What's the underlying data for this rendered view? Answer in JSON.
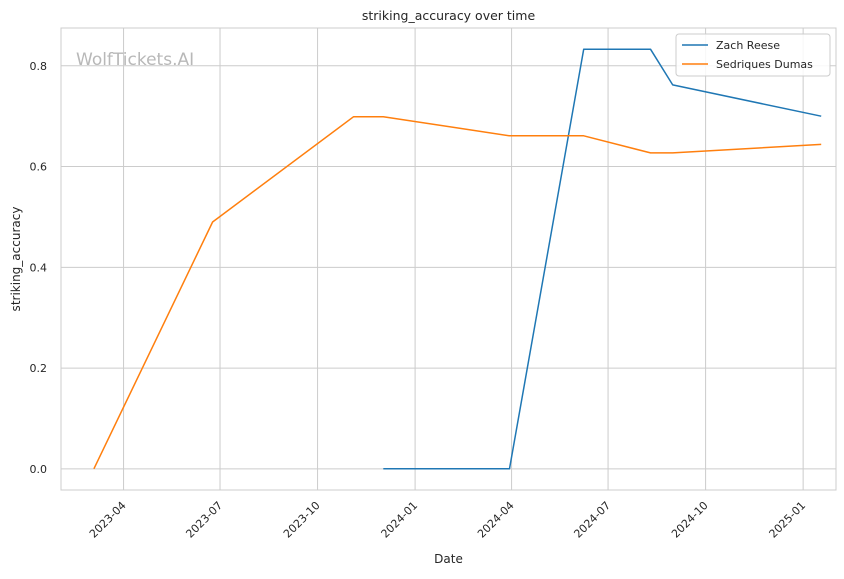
{
  "chart_data": {
    "type": "line",
    "title": "striking_accuracy over time",
    "xlabel": "Date",
    "ylabel": "striking_accuracy",
    "watermark": "WolfTickets.AI",
    "x_axis": {
      "range": [
        "2023-02-01",
        "2025-02-01"
      ],
      "ticks": [
        {
          "date": "2023-04-01",
          "label": "2023-04"
        },
        {
          "date": "2023-07-01",
          "label": "2023-07"
        },
        {
          "date": "2023-10-01",
          "label": "2023-10"
        },
        {
          "date": "2024-01-01",
          "label": "2024-01"
        },
        {
          "date": "2024-04-01",
          "label": "2024-04"
        },
        {
          "date": "2024-07-01",
          "label": "2024-07"
        },
        {
          "date": "2024-10-01",
          "label": "2024-10"
        },
        {
          "date": "2025-01-01",
          "label": "2025-01"
        }
      ]
    },
    "y_axis": {
      "range": [
        -0.042,
        0.875
      ],
      "ticks": [
        {
          "value": 0.0,
          "label": "0.0"
        },
        {
          "value": 0.2,
          "label": "0.2"
        },
        {
          "value": 0.4,
          "label": "0.4"
        },
        {
          "value": 0.6,
          "label": "0.6"
        },
        {
          "value": 0.8,
          "label": "0.8"
        }
      ]
    },
    "grid": true,
    "legend_position": "top-right",
    "series": [
      {
        "name": "Zach Reese",
        "color": "#1f77b4",
        "points": [
          {
            "x": "2023-12-02",
            "y": 0.0
          },
          {
            "x": "2024-03-30",
            "y": 0.0
          },
          {
            "x": "2024-06-08",
            "y": 0.833
          },
          {
            "x": "2024-08-10",
            "y": 0.833
          },
          {
            "x": "2024-08-31",
            "y": 0.762
          },
          {
            "x": "2025-01-18",
            "y": 0.7
          }
        ]
      },
      {
        "name": "Sedriques Dumas",
        "color": "#ff7f0e",
        "points": [
          {
            "x": "2023-03-04",
            "y": 0.0
          },
          {
            "x": "2023-06-24",
            "y": 0.49
          },
          {
            "x": "2023-11-04",
            "y": 0.699
          },
          {
            "x": "2023-12-02",
            "y": 0.699
          },
          {
            "x": "2024-03-30",
            "y": 0.661
          },
          {
            "x": "2024-06-08",
            "y": 0.661
          },
          {
            "x": "2024-08-10",
            "y": 0.627
          },
          {
            "x": "2024-08-31",
            "y": 0.627
          },
          {
            "x": "2025-01-18",
            "y": 0.644
          }
        ]
      }
    ]
  }
}
